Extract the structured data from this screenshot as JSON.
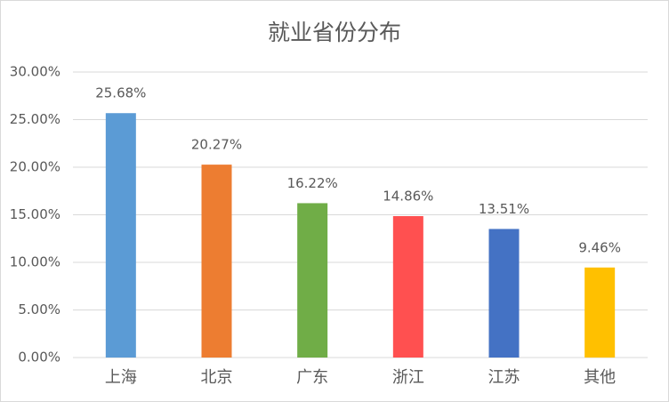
{
  "chart_data": {
    "type": "bar",
    "title": "就业省份分布",
    "categories": [
      "上海",
      "北京",
      "广东",
      "浙江",
      "江苏",
      "其他"
    ],
    "values": [
      25.68,
      20.27,
      16.22,
      14.86,
      13.51,
      9.46
    ],
    "value_labels": [
      "25.68%",
      "20.27%",
      "16.22%",
      "14.86%",
      "13.51%",
      "9.46%"
    ],
    "colors": [
      "#5b9bd5",
      "#ed7d31",
      "#70ad47",
      "#ff5050",
      "#4472c4",
      "#ffc000"
    ],
    "ylim": [
      0,
      30
    ],
    "yticks": [
      {
        "value": 0,
        "label": "0.00%"
      },
      {
        "value": 5,
        "label": "5.00%"
      },
      {
        "value": 10,
        "label": "10.00%"
      },
      {
        "value": 15,
        "label": "15.00%"
      },
      {
        "value": 20,
        "label": "20.00%"
      },
      {
        "value": 25,
        "label": "25.00%"
      },
      {
        "value": 30,
        "label": "30.00%"
      }
    ],
    "grid": true
  }
}
